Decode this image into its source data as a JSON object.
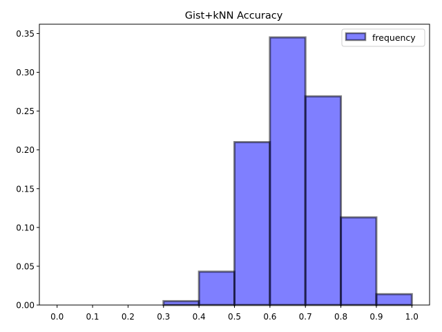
{
  "chart_data": {
    "type": "bar",
    "title": "Gist+kNN Accuracy",
    "xlabel": "",
    "ylabel": "",
    "bin_edges": [
      0.0,
      0.1,
      0.2,
      0.3,
      0.4,
      0.5,
      0.6,
      0.7,
      0.8,
      0.9,
      1.0
    ],
    "series": [
      {
        "name": "frequency",
        "values": [
          0.0,
          0.0,
          0.0,
          0.005,
          0.043,
          0.21,
          0.345,
          0.269,
          0.113,
          0.014
        ]
      }
    ],
    "xlim": [
      -0.05,
      1.05
    ],
    "ylim": [
      0.0,
      0.362
    ],
    "xticks": [
      "0.0",
      "0.1",
      "0.2",
      "0.3",
      "0.4",
      "0.5",
      "0.6",
      "0.7",
      "0.8",
      "0.9",
      "1.0"
    ],
    "yticks": [
      "0.00",
      "0.05",
      "0.10",
      "0.15",
      "0.20",
      "0.25",
      "0.30",
      "0.35"
    ],
    "bar_color": "#0000ff",
    "bar_alpha": 0.5,
    "edge_color": "#000000",
    "grid": false,
    "legend_position": "top-right"
  }
}
